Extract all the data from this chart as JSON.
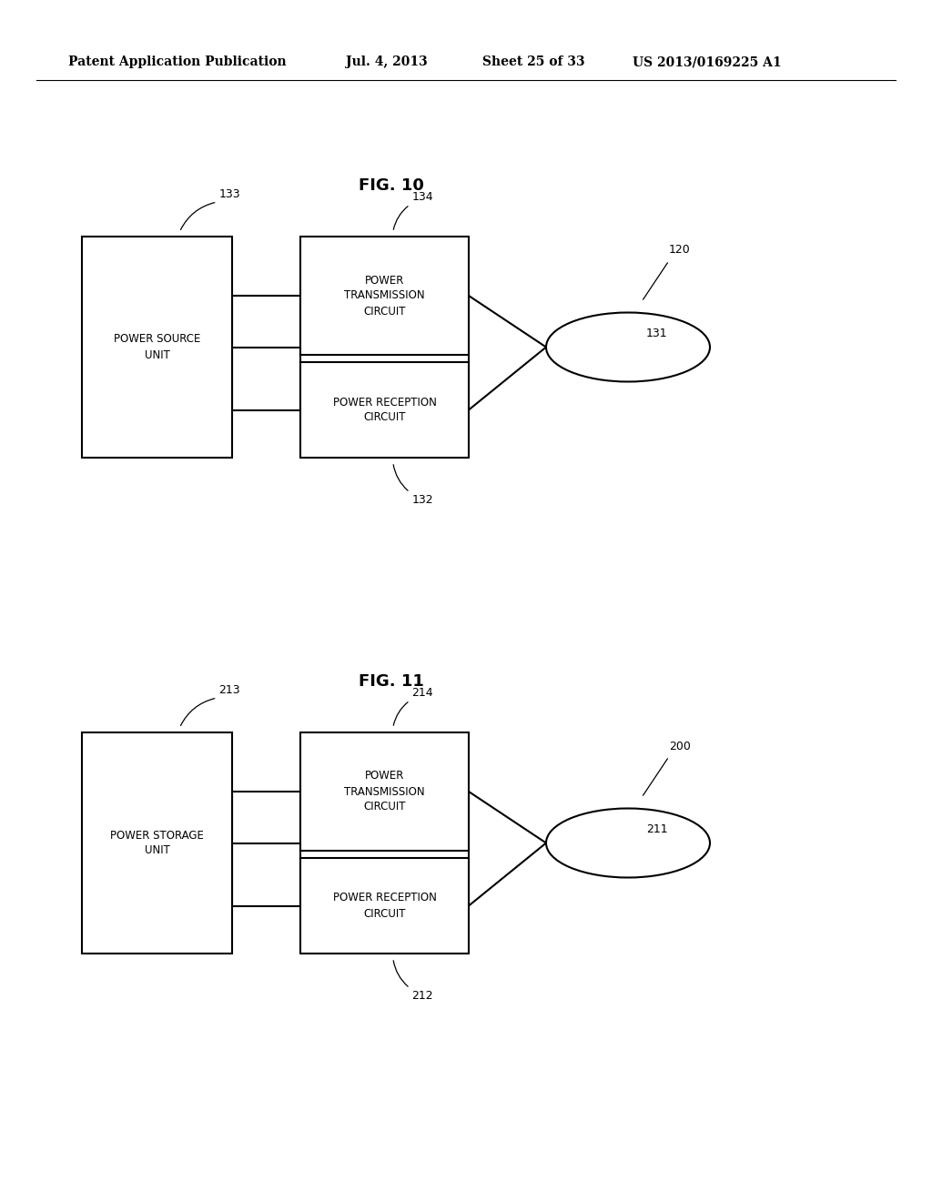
{
  "bg_color": "#ffffff",
  "header_text": "Patent Application Publication",
  "header_date": "Jul. 4, 2013",
  "header_sheet": "Sheet 25 of 33",
  "header_patent": "US 2013/0169225 A1",
  "fig10_title": "FIG. 10",
  "fig11_title": "FIG. 11",
  "fig10": {
    "src_label": "133",
    "trans_label": "134",
    "coil_outer_label": "120",
    "coil_label": "131",
    "recv_label": "132",
    "src_text": "POWER SOURCE\nUNIT",
    "trans_text": "POWER\nTRANSMISSION\nCIRCUIT",
    "recv_text": "POWER RECEPTION\nCIRCUIT"
  },
  "fig11": {
    "src_label": "213",
    "trans_label": "214",
    "coil_outer_label": "200",
    "coil_label": "211",
    "recv_label": "212",
    "src_text": "POWER STORAGE\nUNIT",
    "trans_text": "POWER\nTRANSMISSION\nCIRCUIT",
    "recv_text": "POWER RECEPTION\nCIRCUIT"
  }
}
